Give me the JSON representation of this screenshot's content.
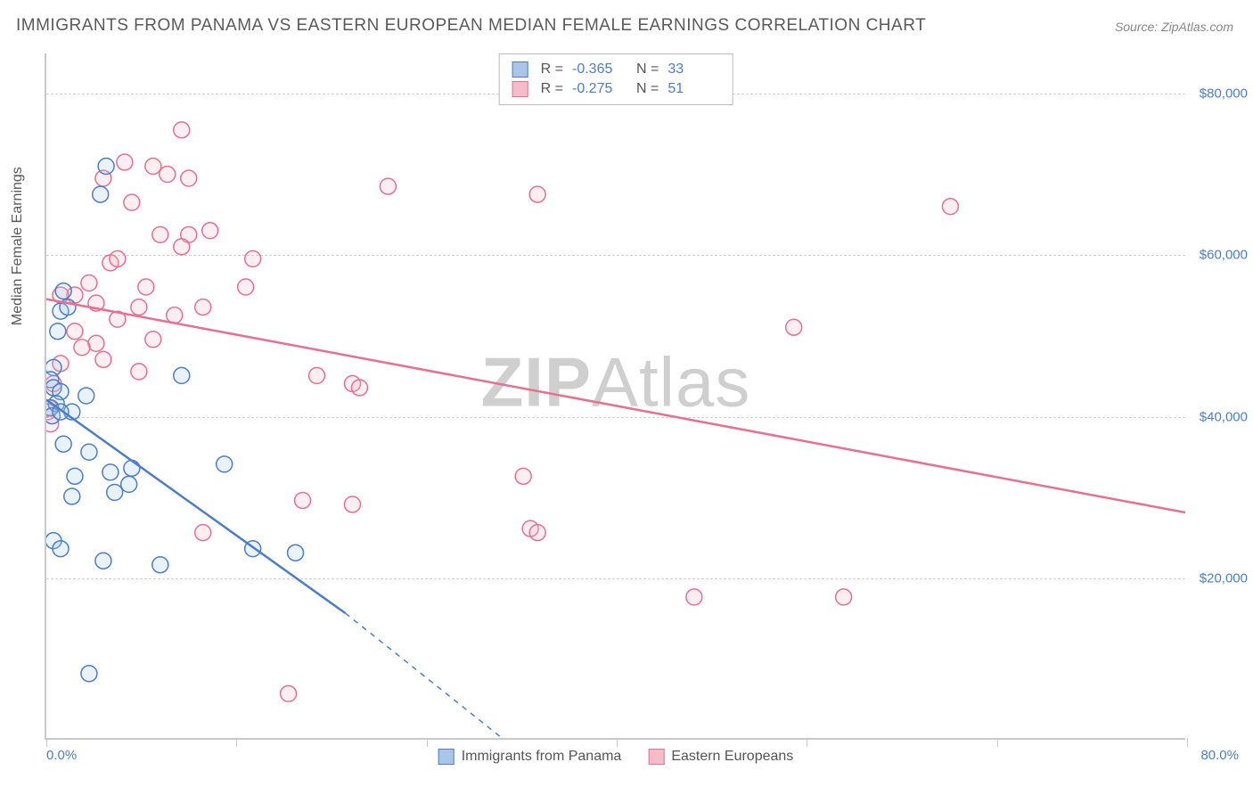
{
  "title": "IMMIGRANTS FROM PANAMA VS EASTERN EUROPEAN MEDIAN FEMALE EARNINGS CORRELATION CHART",
  "source_label": "Source: ZipAtlas.com",
  "watermark_a": "ZIP",
  "watermark_b": "Atlas",
  "y_axis_title": "Median Female Earnings",
  "chart": {
    "type": "scatter",
    "xlim": [
      0,
      80
    ],
    "ylim": [
      0,
      85000
    ],
    "x_tick_positions": [
      0,
      13.3,
      26.7,
      40,
      53.3,
      66.7,
      80
    ],
    "x_label_min": "0.0%",
    "x_label_max": "80.0%",
    "y_gridlines": [
      20000,
      40000,
      60000,
      80000
    ],
    "y_tick_labels": [
      "$20,000",
      "$40,000",
      "$60,000",
      "$80,000"
    ],
    "background_color": "#ffffff",
    "grid_color": "#d0d0d0",
    "marker_radius": 9,
    "marker_fill_opacity": 0.25,
    "marker_stroke_width": 1.5,
    "series": [
      {
        "name": "Immigrants from Panama",
        "color_stroke": "#4a7ec9",
        "color_fill": "#a9c6e8",
        "r_value": "-0.365",
        "n_value": "33",
        "trendline": {
          "x1": 0,
          "y1": 42000,
          "x2": 21,
          "y2": 15500,
          "dashed_x2": 32,
          "dashed_y2": 0
        },
        "points": [
          [
            4.2,
            71000
          ],
          [
            3.8,
            67500
          ],
          [
            1.2,
            55500
          ],
          [
            1.0,
            53000
          ],
          [
            1.5,
            53500
          ],
          [
            0.8,
            50500
          ],
          [
            0.5,
            46000
          ],
          [
            0.3,
            44500
          ],
          [
            0.5,
            43500
          ],
          [
            1.0,
            43000
          ],
          [
            0.7,
            41500
          ],
          [
            0.3,
            41000
          ],
          [
            0.4,
            40000
          ],
          [
            1.8,
            40500
          ],
          [
            2.8,
            42500
          ],
          [
            9.5,
            45000
          ],
          [
            1.2,
            36500
          ],
          [
            3.0,
            35500
          ],
          [
            2.0,
            32500
          ],
          [
            4.5,
            33000
          ],
          [
            6.0,
            33500
          ],
          [
            5.8,
            31500
          ],
          [
            12.5,
            34000
          ],
          [
            1.8,
            30000
          ],
          [
            4.8,
            30500
          ],
          [
            0.5,
            24500
          ],
          [
            1.0,
            23500
          ],
          [
            4.0,
            22000
          ],
          [
            8.0,
            21500
          ],
          [
            14.5,
            23500
          ],
          [
            17.5,
            23000
          ],
          [
            3.0,
            8000
          ],
          [
            1.0,
            40500
          ]
        ]
      },
      {
        "name": "Eastern Europeans",
        "color_stroke": "#e76f8f",
        "color_fill": "#f5bcc9",
        "r_value": "-0.275",
        "n_value": "51",
        "trendline": {
          "x1": 0,
          "y1": 54500,
          "x2": 80,
          "y2": 28000
        },
        "points": [
          [
            9.5,
            75500
          ],
          [
            5.5,
            71500
          ],
          [
            7.5,
            71000
          ],
          [
            4.0,
            69500
          ],
          [
            8.5,
            70000
          ],
          [
            10.0,
            69500
          ],
          [
            63.5,
            66000
          ],
          [
            24.0,
            68500
          ],
          [
            34.5,
            67500
          ],
          [
            6.0,
            66500
          ],
          [
            8.0,
            62500
          ],
          [
            10.0,
            62500
          ],
          [
            11.5,
            63000
          ],
          [
            9.5,
            61000
          ],
          [
            4.5,
            59000
          ],
          [
            5.0,
            59500
          ],
          [
            14.5,
            59500
          ],
          [
            3.0,
            56500
          ],
          [
            2.0,
            55000
          ],
          [
            7.0,
            56000
          ],
          [
            1.0,
            55000
          ],
          [
            3.5,
            54000
          ],
          [
            14.0,
            56000
          ],
          [
            6.5,
            53500
          ],
          [
            11.0,
            53500
          ],
          [
            5.0,
            52000
          ],
          [
            9.0,
            52500
          ],
          [
            2.0,
            50500
          ],
          [
            3.5,
            49000
          ],
          [
            7.5,
            49500
          ],
          [
            52.5,
            51000
          ],
          [
            1.0,
            46500
          ],
          [
            0.5,
            44000
          ],
          [
            19.0,
            45000
          ],
          [
            21.5,
            44000
          ],
          [
            22.0,
            43500
          ],
          [
            0.2,
            41000
          ],
          [
            0.1,
            40500
          ],
          [
            0.3,
            39000
          ],
          [
            18.0,
            29500
          ],
          [
            33.5,
            32500
          ],
          [
            21.5,
            29000
          ],
          [
            11.0,
            25500
          ],
          [
            34.0,
            26000
          ],
          [
            34.5,
            25500
          ],
          [
            45.5,
            17500
          ],
          [
            56.0,
            17500
          ],
          [
            17.0,
            5500
          ],
          [
            6.5,
            45500
          ],
          [
            4.0,
            47000
          ],
          [
            2.5,
            48500
          ]
        ]
      }
    ]
  },
  "legend_top": {
    "r_label": "R =",
    "n_label": "N ="
  }
}
